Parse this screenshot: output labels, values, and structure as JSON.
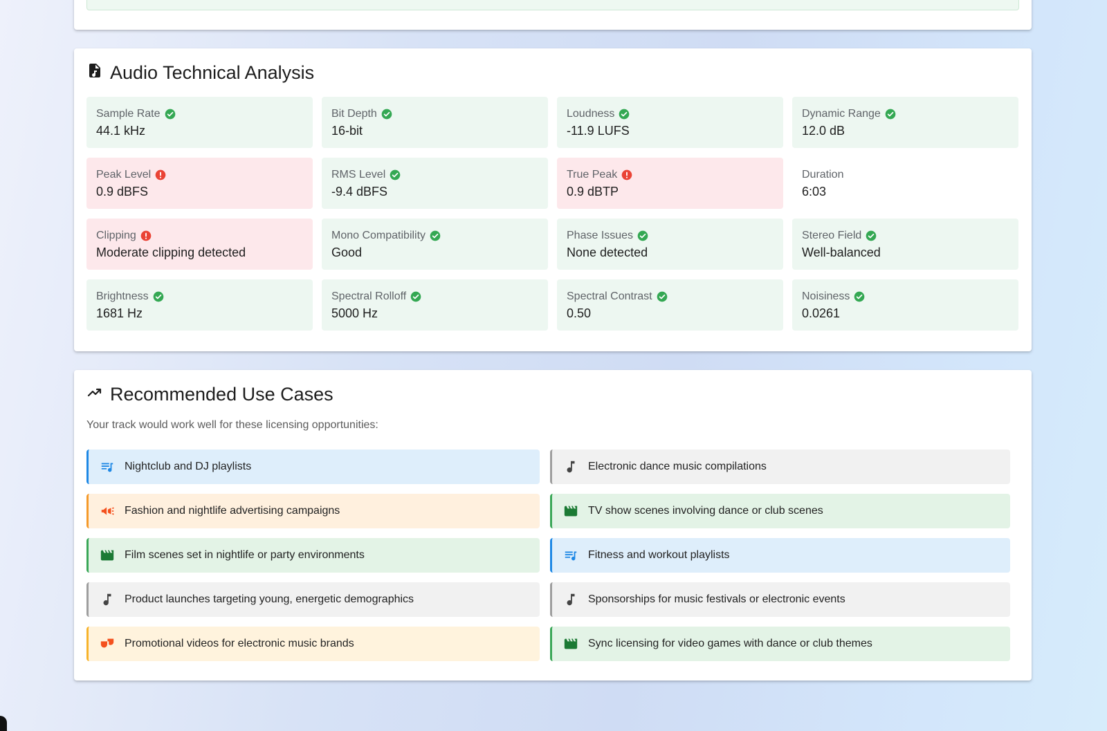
{
  "technical": {
    "title": "Audio Technical Analysis",
    "icon": "audio-file-icon",
    "metrics": [
      {
        "label": "Sample Rate",
        "value": "44.1 kHz",
        "status": "ok"
      },
      {
        "label": "Bit Depth",
        "value": "16-bit",
        "status": "ok"
      },
      {
        "label": "Loudness",
        "value": "-11.9 LUFS",
        "status": "ok"
      },
      {
        "label": "Dynamic Range",
        "value": "12.0 dB",
        "status": "ok"
      },
      {
        "label": "Peak Level",
        "value": "0.9 dBFS",
        "status": "bad"
      },
      {
        "label": "RMS Level",
        "value": "-9.4 dBFS",
        "status": "ok"
      },
      {
        "label": "True Peak",
        "value": "0.9 dBTP",
        "status": "bad"
      },
      {
        "label": "Duration",
        "value": "6:03",
        "status": "neutral"
      },
      {
        "label": "Clipping",
        "value": "Moderate clipping detected",
        "status": "bad"
      },
      {
        "label": "Mono Compatibility",
        "value": "Good",
        "status": "ok"
      },
      {
        "label": "Phase Issues",
        "value": "None detected",
        "status": "ok"
      },
      {
        "label": "Stereo Field",
        "value": "Well-balanced",
        "status": "ok"
      },
      {
        "label": "Brightness",
        "value": "1681 Hz",
        "status": "ok"
      },
      {
        "label": "Spectral Rolloff",
        "value": "5000 Hz",
        "status": "ok"
      },
      {
        "label": "Spectral Contrast",
        "value": "0.50",
        "status": "ok"
      },
      {
        "label": "Noisiness",
        "value": "0.0261",
        "status": "ok"
      }
    ]
  },
  "use_cases": {
    "title": "Recommended Use Cases",
    "icon": "trending-up-icon",
    "subtitle": "Your track would work well for these licensing opportunities:",
    "items": [
      {
        "text": "Nightclub and DJ playlists",
        "icon": "playlist-icon",
        "tone": "blue"
      },
      {
        "text": "Electronic dance music compilations",
        "icon": "music-note-icon",
        "tone": "grey"
      },
      {
        "text": "Fashion and nightlife advertising campaigns",
        "icon": "megaphone-icon",
        "tone": "orange"
      },
      {
        "text": "TV show scenes involving dance or club scenes",
        "icon": "clapperboard-icon",
        "tone": "green"
      },
      {
        "text": "Film scenes set in nightlife or party environments",
        "icon": "clapperboard-icon",
        "tone": "green"
      },
      {
        "text": "Fitness and workout playlists",
        "icon": "playlist-icon",
        "tone": "blue"
      },
      {
        "text": "Product launches targeting young, energetic demographics",
        "icon": "music-note-icon",
        "tone": "grey"
      },
      {
        "text": "Sponsorships for music festivals or electronic events",
        "icon": "music-note-icon",
        "tone": "grey"
      },
      {
        "text": "Promotional videos for electronic music brands",
        "icon": "theater-masks-icon",
        "tone": "cream"
      },
      {
        "text": "Sync licensing for video games with dance or club themes",
        "icon": "clapperboard-icon",
        "tone": "green"
      }
    ]
  },
  "colors": {
    "ok_bg": "#edf7f1",
    "ok_icon": "#34a853",
    "bad_bg": "#fde8eb",
    "bad_icon": "#ea4335",
    "playlist": "#1e88e5",
    "megaphone": "#f4511e",
    "clapper": "#1b7a34",
    "note": "#444444",
    "masks": "#f4511e"
  }
}
